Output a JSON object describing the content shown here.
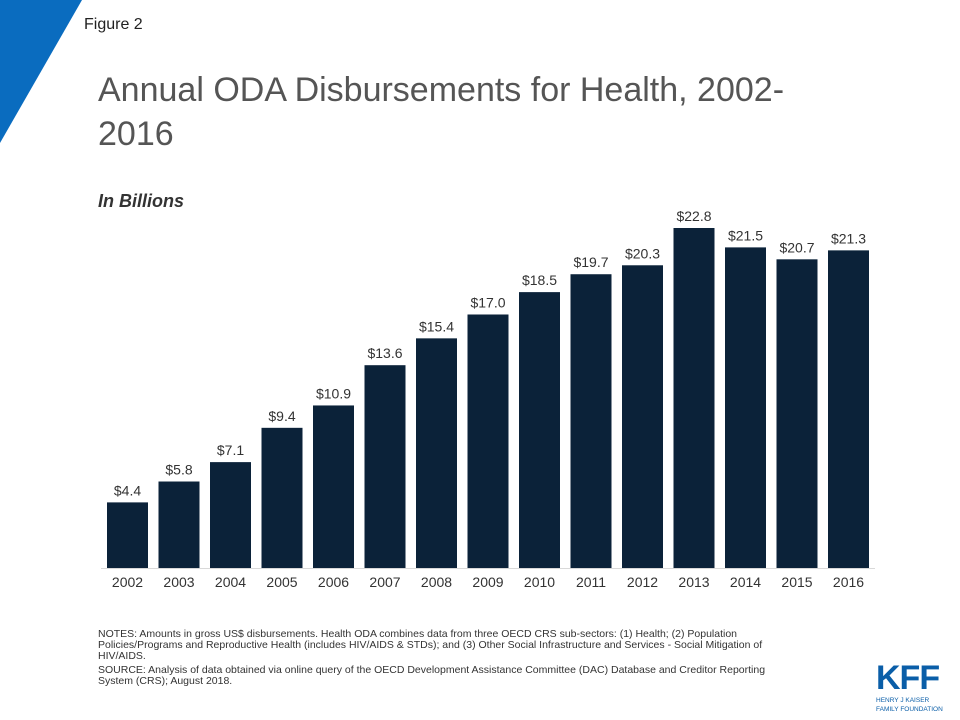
{
  "header": {
    "figure_label": "Figure 2",
    "title": "Annual ODA Disbursements for Health, 2002-2016",
    "subtitle": "In Billions"
  },
  "chart_data": {
    "type": "bar",
    "title": "Annual ODA Disbursements for Health, 2002-2016",
    "subtitle": "In Billions",
    "xlabel": "",
    "ylabel": "",
    "categories": [
      "2002",
      "2003",
      "2004",
      "2005",
      "2006",
      "2007",
      "2008",
      "2009",
      "2010",
      "2011",
      "2012",
      "2013",
      "2014",
      "2015",
      "2016"
    ],
    "values": [
      4.4,
      5.8,
      7.1,
      9.4,
      10.9,
      13.6,
      15.4,
      17.0,
      18.5,
      19.7,
      20.3,
      22.8,
      21.5,
      20.7,
      21.3
    ],
    "data_labels": [
      "$4.4",
      "$5.8",
      "$7.1",
      "$9.4",
      "$10.9",
      "$13.6",
      "$15.4",
      "$17.0",
      "$18.5",
      "$19.7",
      "$20.3",
      "$22.8",
      "$21.5",
      "$20.7",
      "$21.3"
    ],
    "ylim": [
      0,
      22.8
    ],
    "grid": false,
    "legend": "none",
    "bar_color": "#0b2239"
  },
  "notes": {
    "notes_text": "NOTES: Amounts in gross US$ disbursements. Health ODA combines data from three OECD CRS sub-sectors: (1) Health; (2) Population Policies/Programs and Reproductive Health (includes HIV/AIDS & STDs); and (3) Other Social Infrastructure and Services - Social Mitigation of HIV/AIDS.",
    "source_text": "SOURCE: Analysis of data obtained via online query of the OECD Development Assistance Committee (DAC) Database and Creditor Reporting System (CRS); August 2018."
  },
  "logo": {
    "mark": "KFF",
    "line1": "HENRY J KAISER",
    "line2": "FAMILY FOUNDATION",
    "color": "#0a5ea8"
  },
  "accent_color": "#0a6cbf"
}
